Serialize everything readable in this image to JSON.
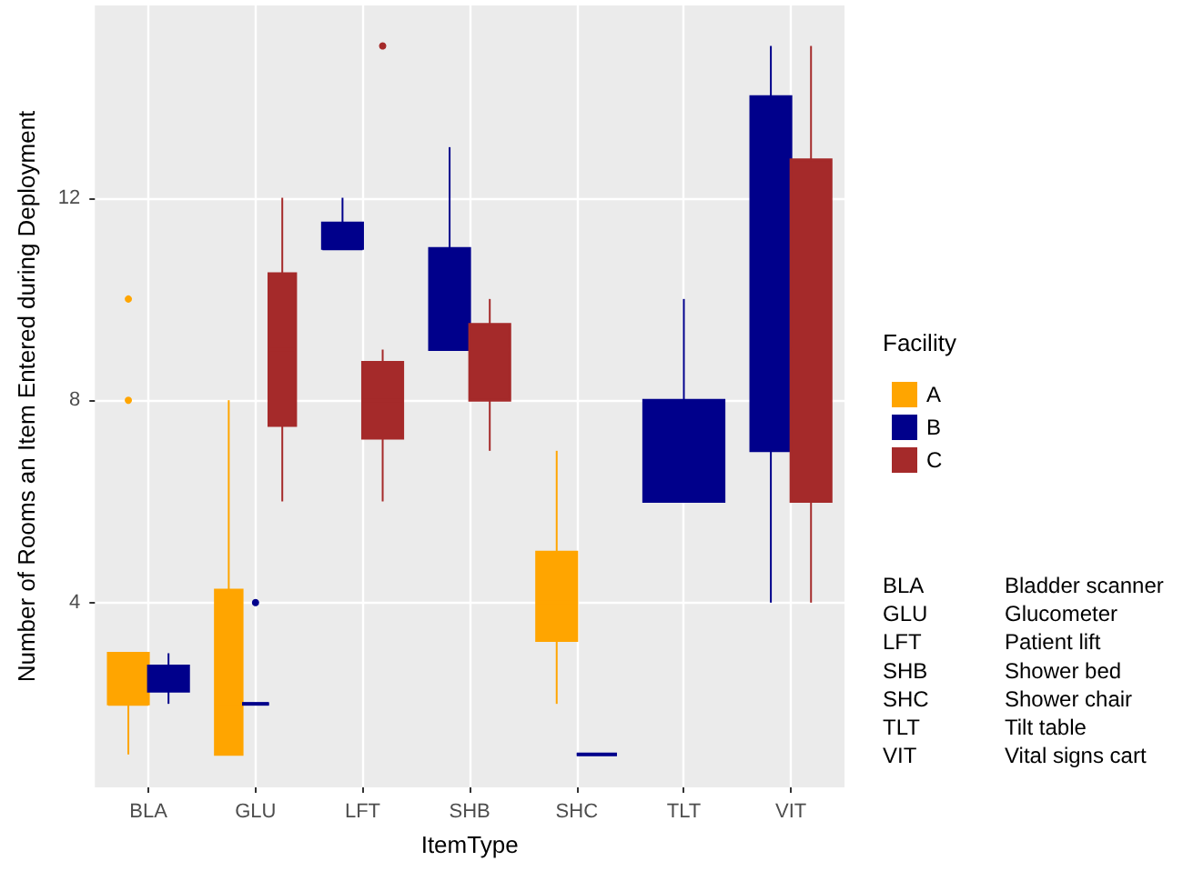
{
  "chart_data": {
    "type": "box",
    "xlabel": "ItemType",
    "ylabel": "Number of Rooms an Item Entered during Deployment",
    "legend_title": "Facility",
    "legend": "right",
    "grid": true,
    "categories": [
      "BLA",
      "GLU",
      "LFT",
      "SHB",
      "SHC",
      "TLT",
      "VIT"
    ],
    "ylim": [
      0.35,
      15.8
    ],
    "yticks": [
      4,
      8,
      12
    ],
    "series": [
      {
        "name": "A",
        "color": "#ffa500",
        "boxes": [
          {
            "low": 1,
            "q1": 2,
            "median": 2,
            "q3": 3,
            "high": 3,
            "outliers": [
              8,
              10
            ]
          },
          {
            "low": 1,
            "q1": 1,
            "median": 2,
            "q3": 4.25,
            "high": 8
          },
          null,
          null,
          {
            "low": 2,
            "q1": 3.25,
            "median": 4,
            "q3": 5,
            "high": 7
          },
          null,
          null
        ]
      },
      {
        "name": "B",
        "color": "#00008b",
        "boxes": [
          {
            "low": 2,
            "q1": 2.25,
            "median": 2.5,
            "q3": 2.75,
            "high": 3
          },
          {
            "low": 2,
            "q1": 2,
            "median": 2,
            "q3": 2,
            "high": 2,
            "outliers": [
              4
            ]
          },
          {
            "low": 11,
            "q1": 11,
            "median": 11,
            "q3": 11.5,
            "high": 12
          },
          {
            "low": 9,
            "q1": 9,
            "median": 10,
            "q3": 11,
            "high": 13
          },
          {
            "low": 1,
            "q1": 1,
            "median": 1,
            "q3": 1,
            "high": 1
          },
          {
            "low": 6,
            "q1": 6,
            "median": 7,
            "q3": 8,
            "high": 10
          },
          {
            "low": 4,
            "q1": 7,
            "median": 10,
            "q3": 14,
            "high": 15
          }
        ]
      },
      {
        "name": "C",
        "color": "#a52a2a",
        "boxes": [
          null,
          {
            "low": 6,
            "q1": 7.5,
            "median": 9,
            "q3": 10.5,
            "high": 12
          },
          {
            "low": 6,
            "q1": 7.25,
            "median": 8,
            "q3": 8.75,
            "high": 9,
            "outliers": [
              15
            ]
          },
          {
            "low": 7,
            "q1": 8,
            "median": 9,
            "q3": 9.5,
            "high": 10
          },
          null,
          null,
          {
            "low": 4,
            "q1": 6,
            "median": 9,
            "q3": 12.75,
            "high": 15
          }
        ]
      }
    ],
    "annotations": [
      "BLA\tBladder scanner",
      "GLU\tGlucometer",
      "LFT\tPatient lift",
      "SHB\tShower bed",
      "SHC\tShower chair",
      "TLT\tTilt table",
      "VIT\tVital signs cart"
    ]
  }
}
